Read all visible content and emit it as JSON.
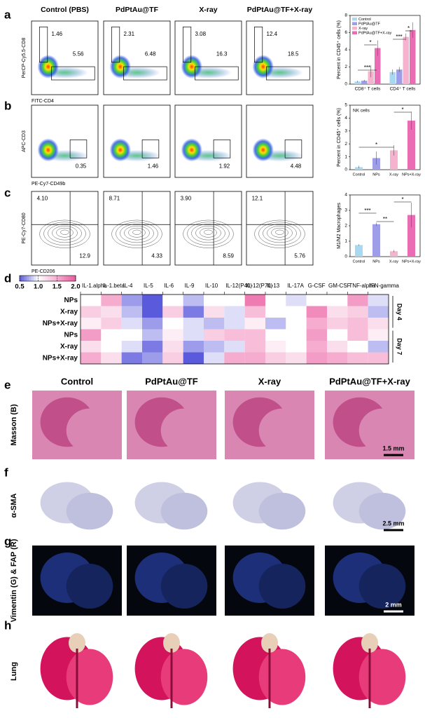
{
  "panels": [
    "a",
    "b",
    "c",
    "d",
    "e",
    "f",
    "g",
    "h"
  ],
  "flow": {
    "columns": [
      "Control (PBS)",
      "PdPtAu@TF",
      "X-ray",
      "PdPtAu@TF+X-ray"
    ],
    "rows": [
      {
        "y_axis": "PerCP-Cy5.5-CD8",
        "x_axis": "FITC-CD4",
        "gates": [
          [
            "1.46",
            "5.56"
          ],
          [
            "2.31",
            "6.48"
          ],
          [
            "3.08",
            "16.3"
          ],
          [
            "12.4",
            "18.5"
          ]
        ]
      },
      {
        "y_axis": "APC-CD3",
        "x_axis": "PE-Cy7-CD49b",
        "gates": [
          [
            "0.35"
          ],
          [
            "1.46"
          ],
          [
            "1.92"
          ],
          [
            "4.48"
          ]
        ]
      },
      {
        "y_axis": "PE-Cy7-CD80",
        "x_axis": "PE-CD206",
        "gates": [
          [
            "4.10",
            "12.9"
          ],
          [
            "8.71",
            "4.33"
          ],
          [
            "3.90",
            "8.59"
          ],
          [
            "12.1",
            "5.76"
          ]
        ]
      }
    ]
  },
  "histology": {
    "columns": [
      "Control",
      "PdPtAu@TF",
      "X-ray",
      "PdPtAu@TF+X-ray"
    ],
    "rows": [
      {
        "label": "Masson (B)",
        "scale": "1.5 mm"
      },
      {
        "label": "α-SMA",
        "scale": "2.5 mm"
      },
      {
        "label": "Vimentin (G) & FAP (R)",
        "scale": "2 mm"
      },
      {
        "label": "Lung"
      }
    ]
  },
  "chart_data": [
    {
      "type": "grouped-bar",
      "y_label": "Percent in CD45⁺ cells (%)",
      "categories": [
        "CD8⁺ T cells",
        "CD4⁺ T cells"
      ],
      "series": [
        {
          "name": "Control",
          "color": "#a9d9f2",
          "values": [
            0.3,
            1.4
          ],
          "errors": [
            0.1,
            0.3
          ]
        },
        {
          "name": "PdPtAu@TF",
          "color": "#9e9ee8",
          "values": [
            0.4,
            1.7
          ],
          "errors": [
            0.1,
            0.3
          ]
        },
        {
          "name": "X-ray",
          "color": "#f6b3d0",
          "values": [
            1.5,
            5.5
          ],
          "errors": [
            0.7,
            0.4
          ]
        },
        {
          "name": "PdPtAu@TF+X-ray",
          "color": "#e96cb4",
          "values": [
            4.2,
            6.3
          ],
          "errors": [
            0.9,
            0.9
          ]
        }
      ],
      "ylim": [
        0,
        8
      ],
      "yticks": [
        0,
        2,
        4,
        6,
        8
      ],
      "annotations": [
        "***",
        "*",
        "***",
        "*"
      ]
    },
    {
      "type": "bar",
      "title": "NK cells",
      "y_label": "Percent in CD45⁺ cells (%)",
      "categories": [
        "Control",
        "NPs",
        "X-ray",
        "NPs+X-ray"
      ],
      "values": [
        0.2,
        0.9,
        1.5,
        3.8
      ],
      "errors": [
        0.1,
        0.5,
        0.4,
        0.7
      ],
      "colors": [
        "#a9d9f2",
        "#9e9ee8",
        "#f6b3d0",
        "#e96cb4"
      ],
      "ylim": [
        0,
        5
      ],
      "yticks": [
        0,
        1,
        2,
        3,
        4,
        5
      ],
      "annotations": [
        "*",
        "*"
      ]
    },
    {
      "type": "bar",
      "y_label": "M1/M2 Macrophages",
      "categories": [
        "Control",
        "NPs",
        "X-ray",
        "NPs+X-ray"
      ],
      "values": [
        0.75,
        2.1,
        0.35,
        2.7
      ],
      "errors": [
        0.05,
        0.1,
        0.08,
        0.8
      ],
      "colors": [
        "#a9d9f2",
        "#9e9ee8",
        "#f6b3d0",
        "#e96cb4"
      ],
      "ylim": [
        0,
        4
      ],
      "yticks": [
        0,
        1,
        2,
        3,
        4
      ],
      "annotations": [
        "***",
        "**",
        "*"
      ]
    },
    {
      "type": "heatmap",
      "columns": [
        "IL-1.alpha",
        "IL-1.beta",
        "IL-4",
        "IL-5",
        "IL-6",
        "IL-9",
        "IL-10",
        "IL-12(P40)",
        "IL-12(P70)",
        "IL-13",
        "IL-17A",
        "G-CSF",
        "GM-CSF",
        "TNF-alpha",
        "IFN-gamma"
      ],
      "column_colors": [
        "#000000",
        "#e03030",
        "#3060c0",
        "#000000",
        "#e03030",
        "#000000",
        "#3060c0",
        "#e03030",
        "#e03030",
        "#3060c0",
        "#000000",
        "#000000",
        "#e03030",
        "#e03030",
        "#e03030"
      ],
      "rows": [
        "NPs",
        "X-ray",
        "NPs+X-ray",
        "NPs",
        "X-ray",
        "NPs+X-ray"
      ],
      "groups": [
        "Day 4",
        "Day 7"
      ],
      "values": [
        [
          1.0,
          1.5,
          0.7,
          0.5,
          1.0,
          0.8,
          1.0,
          1.0,
          1.8,
          1.0,
          0.9,
          1.0,
          1.0,
          1.6,
          0.9
        ],
        [
          1.3,
          1.2,
          0.8,
          0.5,
          1.3,
          0.6,
          1.2,
          0.9,
          1.4,
          1.0,
          1.0,
          1.7,
          1.2,
          1.3,
          0.8
        ],
        [
          1.1,
          1.3,
          0.9,
          0.7,
          1.0,
          0.9,
          0.8,
          0.9,
          1.1,
          0.8,
          1.0,
          1.5,
          1.3,
          1.4,
          1.2
        ],
        [
          1.6,
          1.0,
          1.0,
          0.8,
          1.1,
          0.9,
          1.3,
          1.4,
          1.4,
          1.0,
          1.0,
          1.6,
          1.0,
          1.4,
          1.1
        ],
        [
          1.2,
          1.0,
          0.9,
          0.6,
          1.2,
          0.7,
          0.8,
          0.9,
          1.4,
          1.1,
          1.0,
          1.5,
          1.2,
          1.0,
          0.8
        ],
        [
          1.5,
          1.2,
          0.6,
          0.7,
          1.3,
          0.5,
          0.9,
          1.5,
          1.5,
          1.3,
          1.2,
          1.6,
          1.5,
          1.4,
          1.4
        ]
      ],
      "zlim": [
        0.5,
        2
      ],
      "colorbar_ticks": [
        0.5,
        {
          "value": 1,
          "label": "1.0"
        },
        1.5,
        {
          "value": 2,
          "label": "2.0"
        }
      ]
    }
  ]
}
